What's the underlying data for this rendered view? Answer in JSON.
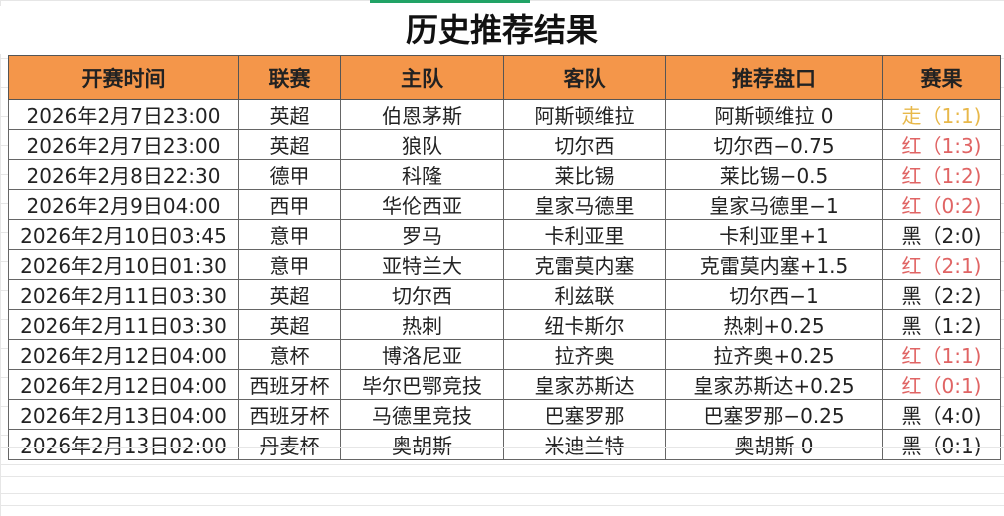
{
  "title": "历史推荐结果",
  "colors": {
    "header_bg": "#f4964a",
    "push": "#e8b84a",
    "red": "#e06464",
    "black": "#222222",
    "selection": "#21a366"
  },
  "headers": [
    "开赛时间",
    "联赛",
    "主队",
    "客队",
    "推荐盘口",
    "赛果"
  ],
  "rows": [
    {
      "time": "2026年2月7日23:00",
      "league": "英超",
      "home": "伯恩茅斯",
      "away": "阿斯顿维拉",
      "pick": "阿斯顿维拉 0",
      "result": "走（1:1)",
      "status": "push"
    },
    {
      "time": "2026年2月7日23:00",
      "league": "英超",
      "home": "狼队",
      "away": "切尔西",
      "pick": "切尔西−0.75",
      "result": "红（1:3)",
      "status": "red"
    },
    {
      "time": "2026年2月8日22:30",
      "league": "德甲",
      "home": "科隆",
      "away": "莱比锡",
      "pick": "莱比锡−0.5",
      "result": "红（1:2)",
      "status": "red"
    },
    {
      "time": "2026年2月9日04:00",
      "league": "西甲",
      "home": "华伦西亚",
      "away": "皇家马德里",
      "pick": "皇家马德里−1",
      "result": "红（0:2)",
      "status": "red"
    },
    {
      "time": "2026年2月10日03:45",
      "league": "意甲",
      "home": "罗马",
      "away": "卡利亚里",
      "pick": "卡利亚里+1",
      "result": "黑（2:0)",
      "status": "black"
    },
    {
      "time": "2026年2月10日01:30",
      "league": "意甲",
      "home": "亚特兰大",
      "away": "克雷莫内塞",
      "pick": "克雷莫内塞+1.5",
      "result": "红（2:1)",
      "status": "red"
    },
    {
      "time": "2026年2月11日03:30",
      "league": "英超",
      "home": "切尔西",
      "away": "利兹联",
      "pick": "切尔西−1",
      "result": "黑（2:2)",
      "status": "black"
    },
    {
      "time": "2026年2月11日03:30",
      "league": "英超",
      "home": "热刺",
      "away": "纽卡斯尔",
      "pick": "热刺+0.25",
      "result": "黑（1:2)",
      "status": "black"
    },
    {
      "time": "2026年2月12日04:00",
      "league": "意杯",
      "home": "博洛尼亚",
      "away": "拉齐奥",
      "pick": "拉齐奥+0.25",
      "result": "红（1:1)",
      "status": "red"
    },
    {
      "time": "2026年2月12日04:00",
      "league": "西班牙杯",
      "home": "毕尔巴鄂竞技",
      "away": "皇家苏斯达",
      "pick": "皇家苏斯达+0.25",
      "result": "红（0:1)",
      "status": "red"
    },
    {
      "time": "2026年2月13日04:00",
      "league": "西班牙杯",
      "home": "马德里竞技",
      "away": "巴塞罗那",
      "pick": "巴塞罗那−0.25",
      "result": "黑（4:0)",
      "status": "black"
    },
    {
      "time": "2026年2月13日02:00",
      "league": "丹麦杯",
      "home": "奥胡斯",
      "away": "米迪兰特",
      "pick": "奥胡斯 0",
      "result": "黑（0:1)",
      "status": "black"
    }
  ]
}
